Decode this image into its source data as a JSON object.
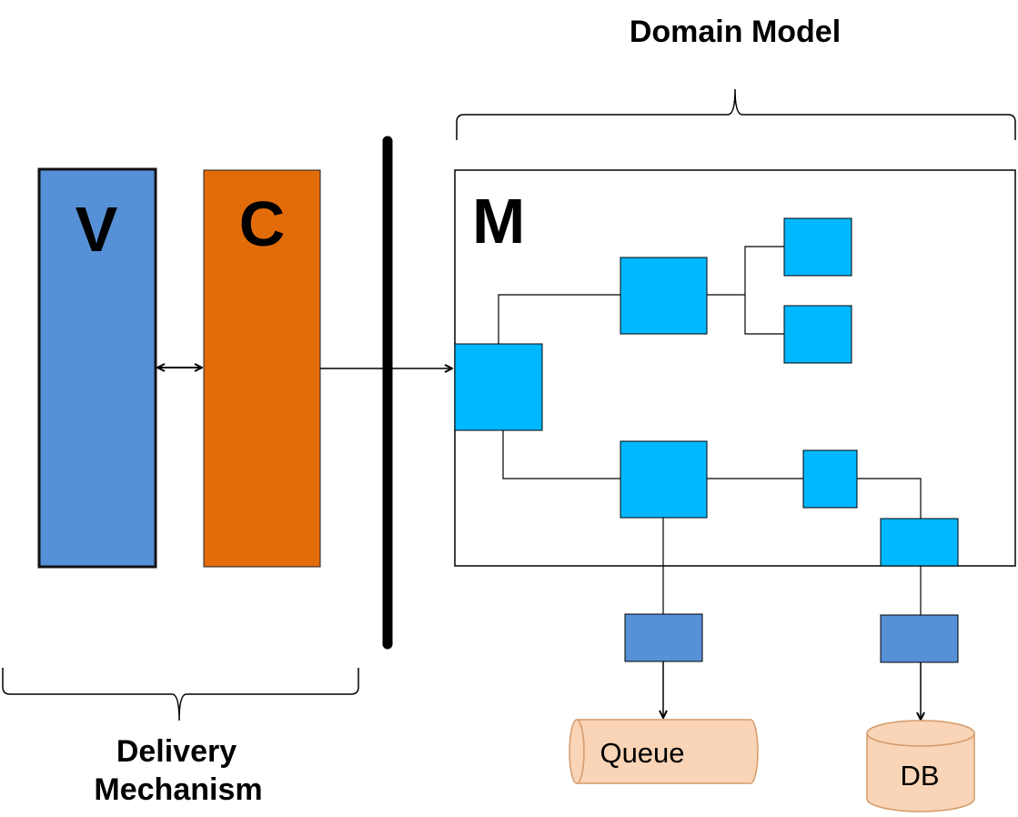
{
  "labels": {
    "domain_model": "Domain Model",
    "delivery_line1": "Delivery",
    "delivery_line2": "Mechanism",
    "view": "V",
    "controller": "C",
    "model": "M",
    "queue": "Queue",
    "db": "DB"
  },
  "colors": {
    "view_fill": "#5690d6",
    "controller_fill": "#e36c0a",
    "model_component": "#00b8ff",
    "adapter": "#5690d6",
    "storage_fill": "#f9d4b6",
    "storage_stroke": "#d49a6a",
    "line": "#000000"
  }
}
